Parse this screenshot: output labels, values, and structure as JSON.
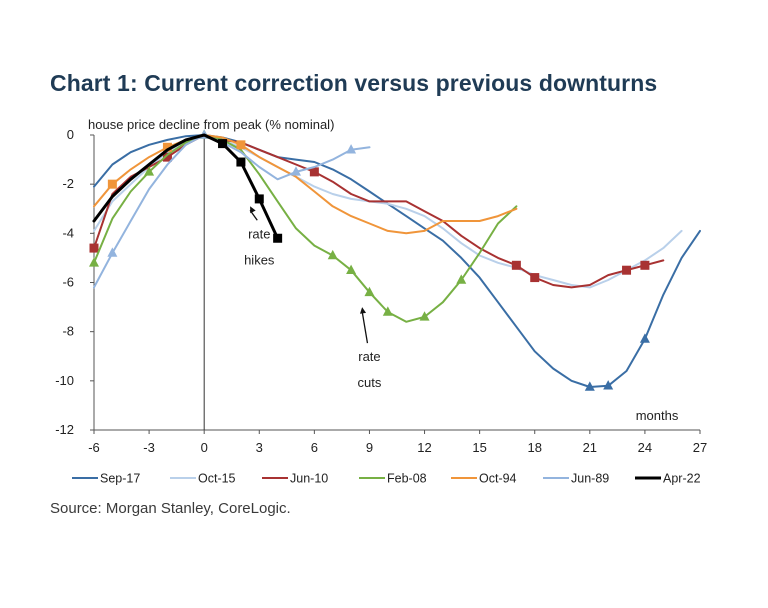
{
  "chart_data": {
    "type": "line",
    "title": "Chart 1: Current correction versus previous downturns",
    "ylabel": "house price decline from peak (% nominal)",
    "xlabel": "months",
    "source": "Source: Morgan Stanley, CoreLogic.",
    "xlim": [
      -6,
      27
    ],
    "ylim": [
      -12,
      0
    ],
    "x_ticks": [
      -6,
      -3,
      0,
      3,
      6,
      9,
      12,
      15,
      18,
      21,
      24,
      27
    ],
    "y_ticks": [
      0,
      -2,
      -4,
      -6,
      -8,
      -10,
      -12
    ],
    "grid": false,
    "legend_position": "bottom",
    "annotations": [
      {
        "text_lines": [
          "rate",
          "hikes"
        ],
        "x": 3,
        "y": -4.2,
        "arrow_to": [
          2.5,
          -2.9
        ]
      },
      {
        "text_lines": [
          "rate",
          "cuts"
        ],
        "x": 9,
        "y": -9.2,
        "arrow_to": [
          8.6,
          -7.0
        ]
      }
    ],
    "series": [
      {
        "name": "Sep-17",
        "color": "#3a6ea5",
        "marker": "triangle",
        "width": 2,
        "points": [
          [
            -6,
            -2.1
          ],
          [
            -5,
            -1.2
          ],
          [
            -4,
            -0.7
          ],
          [
            -3,
            -0.4
          ],
          [
            -2,
            -0.2
          ],
          [
            -1,
            -0.05
          ],
          [
            0,
            0
          ],
          [
            1,
            -0.1
          ],
          [
            2,
            -0.3
          ],
          [
            3,
            -0.6
          ],
          [
            4,
            -0.9
          ],
          [
            5,
            -1.0
          ],
          [
            6,
            -1.1
          ],
          [
            7,
            -1.4
          ],
          [
            8,
            -1.8
          ],
          [
            9,
            -2.3
          ],
          [
            10,
            -2.8
          ],
          [
            11,
            -3.3
          ],
          [
            12,
            -3.8
          ],
          [
            13,
            -4.3
          ],
          [
            14,
            -5.0
          ],
          [
            15,
            -5.8
          ],
          [
            16,
            -6.8
          ],
          [
            17,
            -7.8
          ],
          [
            18,
            -8.8
          ],
          [
            19,
            -9.5
          ],
          [
            20,
            -10.0
          ],
          [
            21,
            -10.25
          ],
          [
            22,
            -10.2
          ],
          [
            23,
            -9.6
          ],
          [
            24,
            -8.3
          ],
          [
            25,
            -6.5
          ],
          [
            26,
            -5.0
          ],
          [
            27,
            -3.9
          ]
        ],
        "markers_at": [
          21,
          22,
          24
        ]
      },
      {
        "name": "Oct-15",
        "color": "#b9d0ea",
        "marker": "none",
        "width": 2,
        "points": [
          [
            -6,
            -3.9
          ],
          [
            -5,
            -2.7
          ],
          [
            -4,
            -2.0
          ],
          [
            -3,
            -1.3
          ],
          [
            -2,
            -0.7
          ],
          [
            -1,
            -0.2
          ],
          [
            0,
            0
          ],
          [
            1,
            -0.2
          ],
          [
            2,
            -0.5
          ],
          [
            3,
            -0.9
          ],
          [
            4,
            -1.3
          ],
          [
            5,
            -1.7
          ],
          [
            6,
            -2.1
          ],
          [
            7,
            -2.4
          ],
          [
            8,
            -2.6
          ],
          [
            9,
            -2.7
          ],
          [
            10,
            -2.8
          ],
          [
            11,
            -3.0
          ],
          [
            12,
            -3.3
          ],
          [
            13,
            -3.8
          ],
          [
            14,
            -4.4
          ],
          [
            15,
            -4.9
          ],
          [
            16,
            -5.2
          ],
          [
            17,
            -5.4
          ],
          [
            18,
            -5.7
          ],
          [
            19,
            -5.9
          ],
          [
            20,
            -6.1
          ],
          [
            21,
            -6.2
          ],
          [
            22,
            -5.9
          ],
          [
            23,
            -5.5
          ],
          [
            24,
            -5.1
          ],
          [
            25,
            -4.6
          ],
          [
            26,
            -3.9
          ]
        ],
        "markers_at": []
      },
      {
        "name": "Jun-10",
        "color": "#a83232",
        "marker": "square",
        "width": 2,
        "points": [
          [
            -6,
            -4.6
          ],
          [
            -5,
            -2.4
          ],
          [
            -4,
            -1.7
          ],
          [
            -3,
            -1.3
          ],
          [
            -2,
            -0.9
          ],
          [
            -1,
            -0.4
          ],
          [
            0,
            0
          ],
          [
            1,
            -0.2
          ],
          [
            2,
            -0.3
          ],
          [
            3,
            -0.6
          ],
          [
            4,
            -0.9
          ],
          [
            5,
            -1.2
          ],
          [
            6,
            -1.5
          ],
          [
            7,
            -1.9
          ],
          [
            8,
            -2.4
          ],
          [
            9,
            -2.7
          ],
          [
            10,
            -2.7
          ],
          [
            11,
            -2.7
          ],
          [
            12,
            -3.1
          ],
          [
            13,
            -3.5
          ],
          [
            14,
            -4.1
          ],
          [
            15,
            -4.6
          ],
          [
            16,
            -5.0
          ],
          [
            17,
            -5.3
          ],
          [
            18,
            -5.8
          ],
          [
            19,
            -6.1
          ],
          [
            20,
            -6.2
          ],
          [
            21,
            -6.1
          ],
          [
            22,
            -5.7
          ],
          [
            23,
            -5.5
          ],
          [
            24,
            -5.3
          ],
          [
            25,
            -5.1
          ]
        ],
        "markers_at": [
          -6,
          -2,
          6,
          17,
          18,
          23,
          24
        ]
      },
      {
        "name": "Feb-08",
        "color": "#77b044",
        "marker": "triangle",
        "width": 2,
        "points": [
          [
            -6,
            -5.2
          ],
          [
            -5,
            -3.4
          ],
          [
            -4,
            -2.3
          ],
          [
            -3,
            -1.5
          ],
          [
            -2,
            -0.8
          ],
          [
            -1,
            -0.3
          ],
          [
            0,
            0
          ],
          [
            1,
            -0.2
          ],
          [
            2,
            -0.6
          ],
          [
            3,
            -1.6
          ],
          [
            4,
            -2.7
          ],
          [
            5,
            -3.8
          ],
          [
            6,
            -4.5
          ],
          [
            7,
            -4.9
          ],
          [
            8,
            -5.5
          ],
          [
            9,
            -6.4
          ],
          [
            10,
            -7.2
          ],
          [
            11,
            -7.6
          ],
          [
            12,
            -7.4
          ],
          [
            13,
            -6.8
          ],
          [
            14,
            -5.9
          ],
          [
            15,
            -4.8
          ],
          [
            16,
            -3.6
          ],
          [
            17,
            -2.9
          ]
        ],
        "markers_at": [
          -6,
          -3,
          0,
          7,
          8,
          9,
          10,
          12,
          14
        ]
      },
      {
        "name": "Oct-94",
        "color": "#f0953a",
        "marker": "square",
        "width": 2,
        "points": [
          [
            -6,
            -2.9
          ],
          [
            -5,
            -2.0
          ],
          [
            -4,
            -1.4
          ],
          [
            -3,
            -0.9
          ],
          [
            -2,
            -0.5
          ],
          [
            -1,
            -0.2
          ],
          [
            0,
            0
          ],
          [
            1,
            -0.1
          ],
          [
            2,
            -0.4
          ],
          [
            3,
            -0.9
          ],
          [
            4,
            -1.3
          ],
          [
            5,
            -1.7
          ],
          [
            6,
            -2.3
          ],
          [
            7,
            -2.9
          ],
          [
            8,
            -3.3
          ],
          [
            9,
            -3.6
          ],
          [
            10,
            -3.9
          ],
          [
            11,
            -4.0
          ],
          [
            12,
            -3.9
          ],
          [
            13,
            -3.5
          ],
          [
            14,
            -3.5
          ],
          [
            15,
            -3.5
          ],
          [
            16,
            -3.3
          ],
          [
            17,
            -3.0
          ]
        ],
        "markers_at": [
          -5,
          -2,
          2
        ]
      },
      {
        "name": "Jun-89",
        "color": "#93b4de",
        "marker": "triangle",
        "width": 2,
        "points": [
          [
            -6,
            -6.2
          ],
          [
            -5,
            -4.8
          ],
          [
            -4,
            -3.5
          ],
          [
            -3,
            -2.2
          ],
          [
            -2,
            -1.2
          ],
          [
            -1,
            -0.4
          ],
          [
            0,
            0
          ],
          [
            1,
            -0.3
          ],
          [
            2,
            -0.7
          ],
          [
            3,
            -1.3
          ],
          [
            4,
            -1.8
          ],
          [
            5,
            -1.5
          ],
          [
            6,
            -1.3
          ],
          [
            7,
            -1.0
          ],
          [
            8,
            -0.6
          ],
          [
            9,
            -0.5
          ]
        ],
        "markers_at": [
          -5,
          0,
          5,
          8
        ]
      },
      {
        "name": "Apr-22",
        "color": "#000000",
        "marker": "square",
        "width": 3,
        "points": [
          [
            -6,
            -3.5
          ],
          [
            -5,
            -2.5
          ],
          [
            -4,
            -1.8
          ],
          [
            -3,
            -1.2
          ],
          [
            -2,
            -0.6
          ],
          [
            -1,
            -0.2
          ],
          [
            0,
            0
          ],
          [
            1,
            -0.35
          ],
          [
            2,
            -1.1
          ],
          [
            3,
            -2.6
          ],
          [
            4,
            -4.2
          ]
        ],
        "markers_at": [
          1,
          2,
          3,
          4
        ]
      }
    ]
  }
}
